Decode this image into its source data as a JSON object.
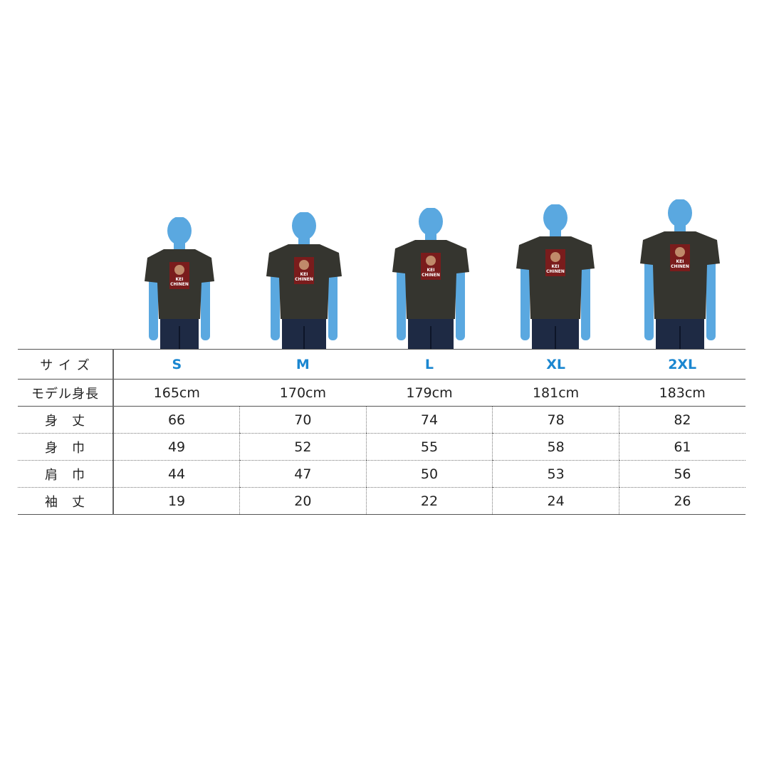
{
  "shirt_print_text": "KEI CHINEN",
  "colors": {
    "silhouette": "#5aa8e0",
    "shirt": "#35352f",
    "jeans": "#1e2a44",
    "size_label": "#1a86d0"
  },
  "table": {
    "size_label": "サ イ ズ",
    "sizes": [
      "S",
      "M",
      "L",
      "XL",
      "2XL"
    ],
    "model_label": "モデル身長",
    "model_heights": [
      "165cm",
      "170cm",
      "179cm",
      "181cm",
      "183cm"
    ],
    "rows": [
      {
        "label": "身　丈",
        "values": [
          "66",
          "70",
          "74",
          "78",
          "82"
        ]
      },
      {
        "label": "身　巾",
        "values": [
          "49",
          "52",
          "55",
          "58",
          "61"
        ]
      },
      {
        "label": "肩　巾",
        "values": [
          "44",
          "47",
          "50",
          "53",
          "56"
        ]
      },
      {
        "label": "袖　丈",
        "values": [
          "19",
          "20",
          "22",
          "24",
          "26"
        ]
      }
    ]
  }
}
